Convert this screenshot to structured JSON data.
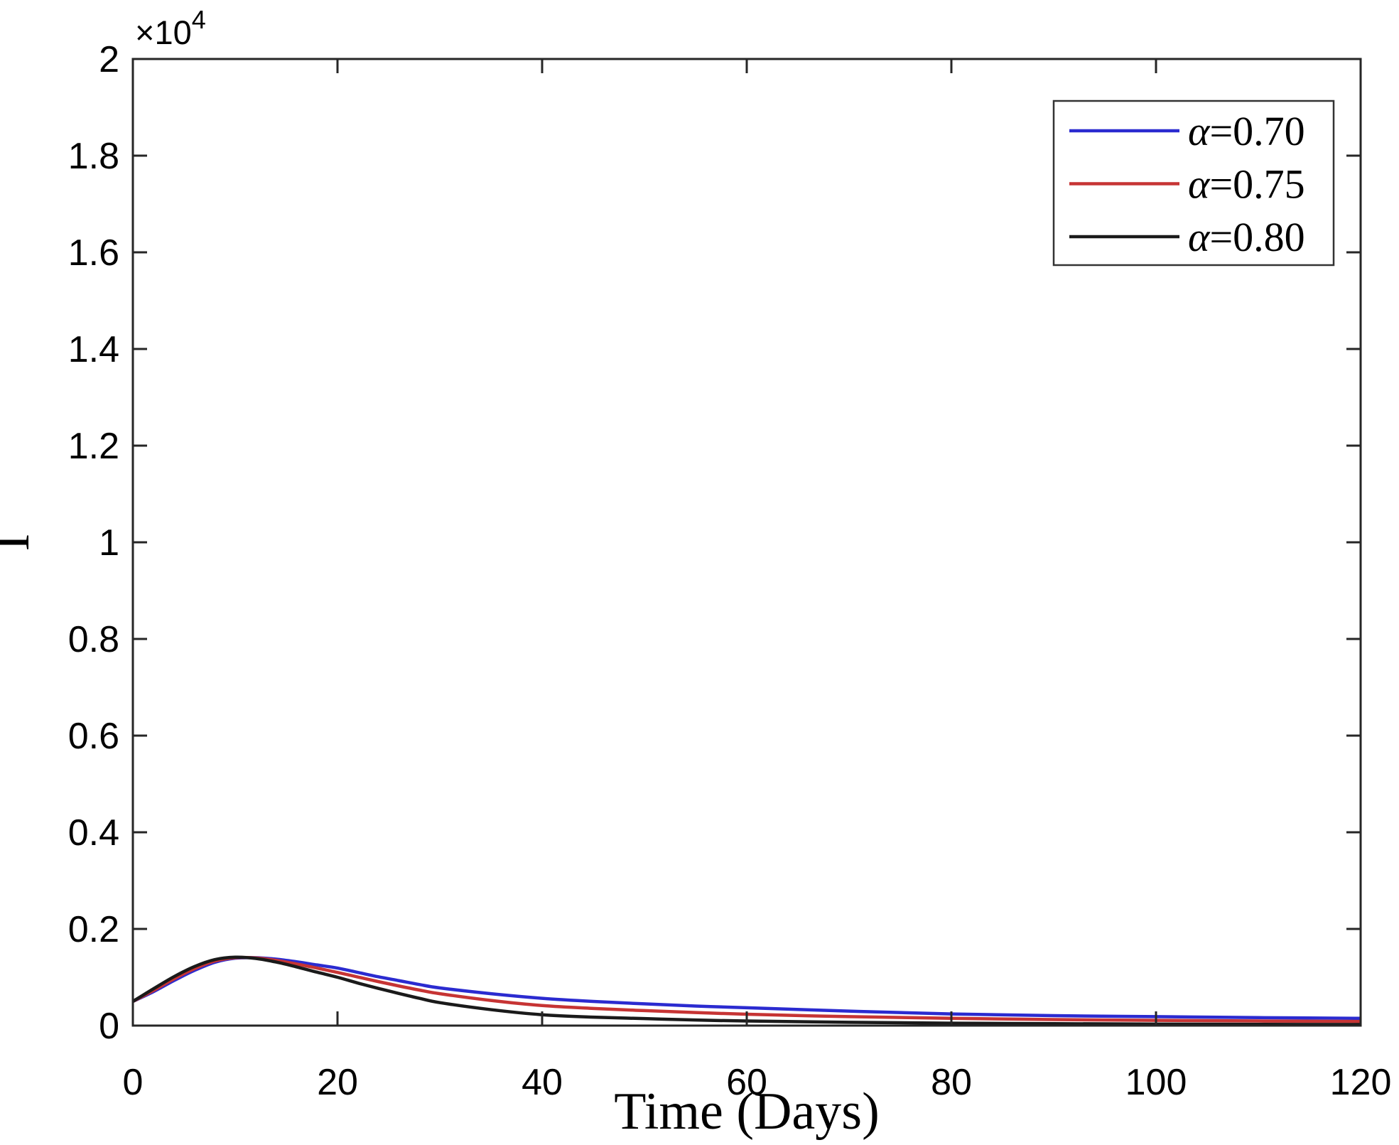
{
  "chart_data": {
    "type": "line",
    "title": "",
    "xlabel": "Time (Days)",
    "ylabel": "I",
    "y_multiplier": {
      "base": "×10",
      "exp": "4"
    },
    "xlim": [
      0,
      120
    ],
    "ylim": [
      0,
      20000
    ],
    "xticks": [
      0,
      20,
      40,
      60,
      80,
      100,
      120
    ],
    "yticks": [
      {
        "value": 0,
        "label": "0"
      },
      {
        "value": 2000,
        "label": "0.2"
      },
      {
        "value": 4000,
        "label": "0.4"
      },
      {
        "value": 6000,
        "label": "0.6"
      },
      {
        "value": 8000,
        "label": "0.8"
      },
      {
        "value": 10000,
        "label": "1"
      },
      {
        "value": 12000,
        "label": "1.2"
      },
      {
        "value": 14000,
        "label": "1.4"
      },
      {
        "value": 16000,
        "label": "1.6"
      },
      {
        "value": 18000,
        "label": "1.8"
      },
      {
        "value": 20000,
        "label": "2"
      }
    ],
    "grid": false,
    "legend_position": "top-right",
    "x": [
      0,
      2,
      4,
      6,
      8,
      10,
      12,
      14,
      16,
      18,
      20,
      22,
      24,
      26,
      28,
      30,
      35,
      40,
      45,
      50,
      55,
      60,
      70,
      80,
      90,
      100,
      110,
      120
    ],
    "series": [
      {
        "name": "α=0.70",
        "color": "#2B2BD0",
        "values": [
          500,
          700,
          930,
          1140,
          1310,
          1395,
          1405,
          1375,
          1320,
          1255,
          1190,
          1100,
          1010,
          930,
          850,
          780,
          660,
          565,
          500,
          450,
          405,
          370,
          300,
          240,
          205,
          185,
          165,
          150
        ]
      },
      {
        "name": "α=0.75",
        "color": "#C63434",
        "values": [
          500,
          725,
          965,
          1175,
          1335,
          1405,
          1400,
          1350,
          1275,
          1190,
          1100,
          1005,
          910,
          820,
          735,
          660,
          520,
          415,
          355,
          310,
          270,
          235,
          185,
          150,
          125,
          108,
          95,
          85
        ]
      },
      {
        "name": "α=0.80",
        "color": "#1A1A1A",
        "values": [
          500,
          760,
          1010,
          1220,
          1365,
          1415,
          1390,
          1315,
          1215,
          1105,
          1000,
          880,
          770,
          665,
          565,
          475,
          330,
          225,
          175,
          145,
          115,
          95,
          68,
          50,
          40,
          32,
          26,
          22
        ]
      }
    ],
    "axis_color": "#262626",
    "legend_border_color": "#333333"
  }
}
